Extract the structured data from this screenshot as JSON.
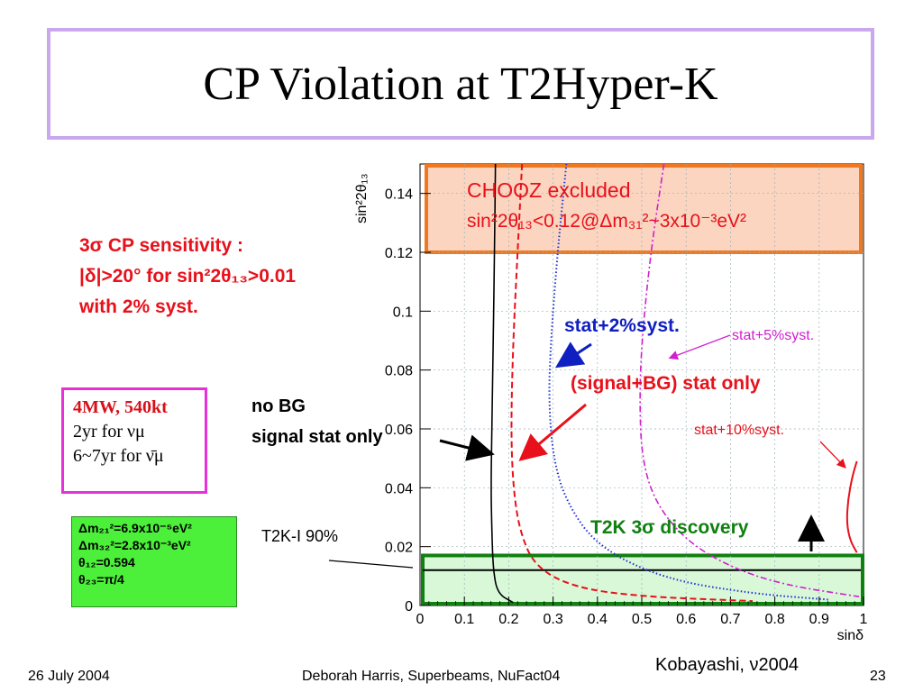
{
  "title": "CP Violation at T2Hyper-K",
  "sensitivity_note": {
    "line1": "3σ CP sensitivity :",
    "line2": "|δ|>20° for sin²2θ₁₃>0.01",
    "line3": " with 2% syst."
  },
  "exposure_box": {
    "title": "4MW, 540kt",
    "line1": "2yr for νμ",
    "line2": "6~7yr for ν̄μ"
  },
  "params_box": {
    "line1": "Δm₂₁²=6.9x10⁻⁵eV²",
    "line2": "Δm₃₂²=2.8x10⁻³eV²",
    "line3": "θ₁₂=0.594",
    "line4": "θ₂₃=π/4"
  },
  "annotations": {
    "chooz_line1": "CHOOZ excluded",
    "chooz_line2": "sin²2θ₁₃<0.12@Δm₃₁²~3x10⁻³eV²",
    "stat2": "stat+2%syst.",
    "stat5": "stat+5%syst.",
    "signal_bg": "(signal+BG) stat only",
    "stat10": "stat+10%syst.",
    "nobg_line1": "no BG",
    "nobg_line2": "signal stat only",
    "t2k_discovery": "T2K 3σ discovery",
    "t2k1": "T2K-I 90%"
  },
  "footer": {
    "date": "26 July 2004",
    "center": "Deborah Harris, Superbeams, NuFact04",
    "page": "23",
    "credit": "Kobayashi, ν2004"
  },
  "colors": {
    "title_border": "#c9a8ee",
    "chooz_fill": "#fbd5c0",
    "chooz_border": "#f07820",
    "discovery_fill": "#d8f8d8",
    "discovery_border": "#108010",
    "nobg_curve": "#000000",
    "signal_bg_curve": "#e8101a",
    "stat2_curve": "#2030d0",
    "stat5_curve": "#d020d0",
    "stat10_curve": "#e8101a"
  },
  "chart_data": {
    "type": "line",
    "xlabel": "sinδ",
    "ylabel": "sin²2θ₁₃",
    "xlim": [
      0,
      1
    ],
    "ylim": [
      0,
      0.15
    ],
    "xticks": [
      "0",
      "0.1",
      "0.2",
      "0.3",
      "0.4",
      "0.5",
      "0.6",
      "0.7",
      "0.8",
      "0.9",
      "1"
    ],
    "yticks": [
      "0",
      "0.02",
      "0.04",
      "0.06",
      "0.08",
      "0.1",
      "0.12",
      "0.14"
    ],
    "grid": true,
    "series": [
      {
        "name": "no BG signal stat only",
        "style": "solid",
        "points": [
          [
            0.17,
            0.15
          ],
          [
            0.168,
            0.12
          ],
          [
            0.165,
            0.09
          ],
          [
            0.162,
            0.06
          ],
          [
            0.16,
            0.04
          ],
          [
            0.162,
            0.025
          ],
          [
            0.165,
            0.012
          ],
          [
            0.175,
            0.004
          ],
          [
            0.21,
            0.001
          ]
        ]
      },
      {
        "name": "(signal+BG) stat only",
        "style": "dashed",
        "points": [
          [
            0.23,
            0.15
          ],
          [
            0.22,
            0.12
          ],
          [
            0.21,
            0.09
          ],
          [
            0.205,
            0.06
          ],
          [
            0.21,
            0.04
          ],
          [
            0.225,
            0.025
          ],
          [
            0.26,
            0.013
          ],
          [
            0.35,
            0.006
          ],
          [
            0.5,
            0.003
          ],
          [
            0.75,
            0.0015
          ]
        ]
      },
      {
        "name": "stat+2%syst.",
        "style": "dotted",
        "points": [
          [
            0.33,
            0.15
          ],
          [
            0.31,
            0.12
          ],
          [
            0.295,
            0.09
          ],
          [
            0.29,
            0.07
          ],
          [
            0.3,
            0.05
          ],
          [
            0.33,
            0.035
          ],
          [
            0.4,
            0.02
          ],
          [
            0.55,
            0.009
          ],
          [
            0.75,
            0.004
          ],
          [
            0.92,
            0.002
          ]
        ]
      },
      {
        "name": "stat+5%syst.",
        "style": "dashdot",
        "points": [
          [
            0.55,
            0.15
          ],
          [
            0.52,
            0.12
          ],
          [
            0.5,
            0.09
          ],
          [
            0.495,
            0.07
          ],
          [
            0.5,
            0.05
          ],
          [
            0.53,
            0.035
          ],
          [
            0.6,
            0.022
          ],
          [
            0.7,
            0.013
          ],
          [
            0.82,
            0.007
          ],
          [
            0.99,
            0.003
          ]
        ]
      },
      {
        "name": "stat+10%syst.",
        "style": "solid",
        "points": [
          [
            0.985,
            0.049
          ],
          [
            0.975,
            0.044
          ],
          [
            0.965,
            0.036
          ],
          [
            0.962,
            0.028
          ],
          [
            0.97,
            0.022
          ],
          [
            0.985,
            0.018
          ]
        ]
      }
    ],
    "bands": [
      {
        "name": "CHOOZ excluded",
        "ymin": 0.12,
        "ymax": 0.15
      },
      {
        "name": "T2K 3σ discovery",
        "ymin": 0,
        "ymax": 0.017
      }
    ],
    "reference_lines": [
      {
        "name": "T2K-I 90%",
        "y": 0.012
      }
    ]
  }
}
